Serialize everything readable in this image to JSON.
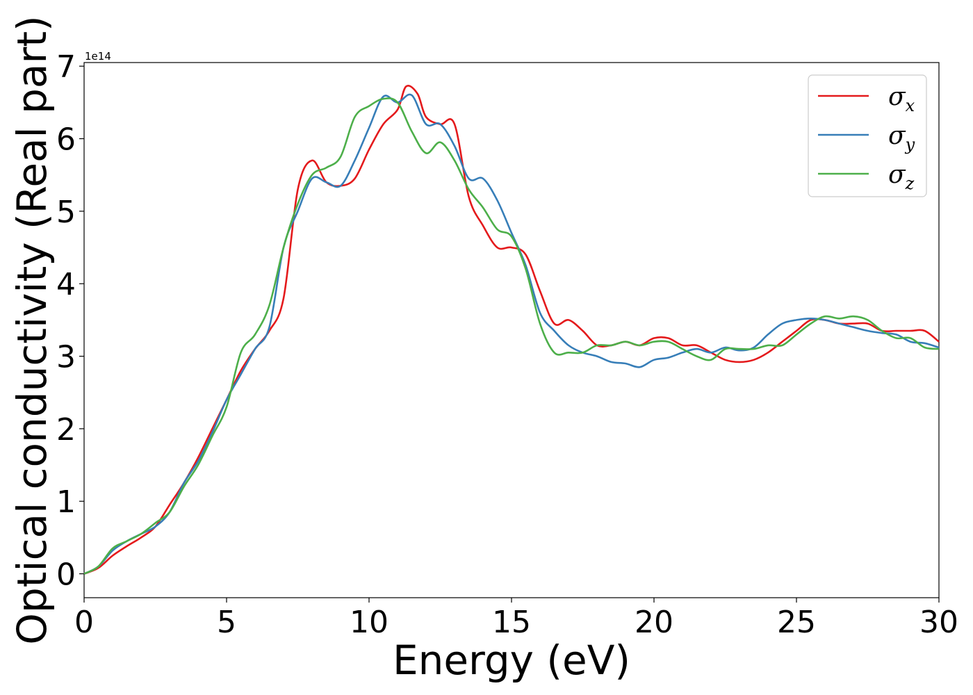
{
  "chart_data": {
    "type": "line",
    "xlabel": "Energy (eV)",
    "ylabel": "Optical conductivity (Real part)",
    "y_offset_label": "1e14",
    "xlim": [
      0,
      30
    ],
    "ylim": [
      -0.33,
      7.05
    ],
    "xticks": [
      0,
      5,
      10,
      15,
      20,
      25,
      30
    ],
    "yticks": [
      0,
      1,
      2,
      3,
      4,
      5,
      6,
      7
    ],
    "grid": false,
    "legend_position": "top-right",
    "series": [
      {
        "name": "σx",
        "symbol": "σ",
        "subscript": "x",
        "color": "#e41a1c",
        "x": [
          0,
          0.5,
          1,
          1.5,
          2,
          2.5,
          3,
          3.5,
          4,
          4.5,
          5,
          5.5,
          6,
          6.5,
          7,
          7.5,
          8,
          8.5,
          9,
          9.5,
          10,
          10.5,
          11,
          11.3,
          11.7,
          12,
          12.5,
          13,
          13.5,
          14,
          14.5,
          15,
          15.5,
          16,
          16.5,
          17,
          17.5,
          18,
          18.5,
          19,
          19.5,
          20,
          20.5,
          21,
          21.5,
          22,
          22.5,
          23,
          23.5,
          24,
          24.5,
          25,
          25.5,
          26,
          26.5,
          27,
          27.5,
          28,
          28.5,
          29,
          29.5,
          30
        ],
        "y": [
          0,
          0.08,
          0.25,
          0.38,
          0.5,
          0.65,
          0.95,
          1.25,
          1.6,
          2.0,
          2.4,
          2.8,
          3.1,
          3.35,
          3.8,
          5.3,
          5.7,
          5.4,
          5.35,
          5.45,
          5.85,
          6.2,
          6.4,
          6.72,
          6.62,
          6.3,
          6.2,
          6.2,
          5.2,
          4.8,
          4.5,
          4.5,
          4.4,
          3.9,
          3.45,
          3.5,
          3.35,
          3.15,
          3.15,
          3.2,
          3.15,
          3.25,
          3.25,
          3.15,
          3.15,
          3.05,
          2.95,
          2.92,
          2.95,
          3.05,
          3.2,
          3.35,
          3.5,
          3.5,
          3.45,
          3.45,
          3.45,
          3.35,
          3.35,
          3.35,
          3.35,
          3.2
        ]
      },
      {
        "name": "σy",
        "symbol": "σ",
        "subscript": "y",
        "color": "#377eb8",
        "x": [
          0,
          0.5,
          1,
          1.5,
          2,
          2.5,
          3,
          3.5,
          4,
          4.5,
          5,
          5.5,
          6,
          6.5,
          7,
          7.5,
          8,
          8.5,
          9,
          9.5,
          10,
          10.5,
          11,
          11.5,
          12,
          12.5,
          13,
          13.5,
          14,
          14.5,
          15,
          15.5,
          16,
          16.5,
          17,
          17.5,
          18,
          18.5,
          19,
          19.5,
          20,
          20.5,
          21,
          21.5,
          22,
          22.5,
          23,
          23.5,
          24,
          24.5,
          25,
          25.5,
          26,
          26.5,
          27,
          27.5,
          28,
          28.5,
          29,
          29.5,
          30
        ],
        "y": [
          0,
          0.1,
          0.32,
          0.45,
          0.55,
          0.65,
          0.85,
          1.25,
          1.55,
          1.95,
          2.4,
          2.75,
          3.1,
          3.4,
          4.5,
          5.0,
          5.45,
          5.4,
          5.35,
          5.7,
          6.15,
          6.58,
          6.5,
          6.6,
          6.2,
          6.2,
          5.9,
          5.45,
          5.45,
          5.15,
          4.7,
          4.25,
          3.6,
          3.35,
          3.15,
          3.05,
          3.0,
          2.92,
          2.9,
          2.85,
          2.95,
          2.98,
          3.05,
          3.1,
          3.05,
          3.12,
          3.08,
          3.12,
          3.3,
          3.45,
          3.5,
          3.52,
          3.5,
          3.45,
          3.4,
          3.35,
          3.32,
          3.3,
          3.2,
          3.18,
          3.12
        ]
      },
      {
        "name": "σz",
        "symbol": "σ",
        "subscript": "z",
        "color": "#4daf4a",
        "x": [
          0,
          0.5,
          1,
          1.5,
          2,
          2.5,
          3,
          3.5,
          4,
          4.5,
          5,
          5.5,
          6,
          6.5,
          7,
          7.5,
          8,
          8.5,
          9,
          9.5,
          10,
          10.5,
          11,
          11.5,
          12,
          12.5,
          13,
          13.5,
          14,
          14.5,
          15,
          15.5,
          16,
          16.5,
          17,
          17.5,
          18,
          18.5,
          19,
          19.5,
          20,
          20.5,
          21,
          21.5,
          22,
          22.5,
          23,
          23.5,
          24,
          24.5,
          25,
          25.5,
          26,
          26.5,
          27,
          27.5,
          28,
          28.5,
          29,
          29.5,
          30
        ],
        "y": [
          0,
          0.1,
          0.35,
          0.45,
          0.55,
          0.7,
          0.85,
          1.2,
          1.5,
          1.9,
          2.3,
          3.05,
          3.3,
          3.7,
          4.5,
          5.1,
          5.5,
          5.6,
          5.75,
          6.3,
          6.45,
          6.55,
          6.5,
          6.1,
          5.8,
          5.95,
          5.7,
          5.3,
          5.05,
          4.75,
          4.65,
          4.2,
          3.45,
          3.05,
          3.05,
          3.05,
          3.15,
          3.15,
          3.2,
          3.15,
          3.2,
          3.2,
          3.1,
          3.0,
          2.95,
          3.1,
          3.1,
          3.1,
          3.15,
          3.15,
          3.3,
          3.45,
          3.55,
          3.52,
          3.55,
          3.5,
          3.35,
          3.25,
          3.25,
          3.12,
          3.1
        ]
      }
    ]
  }
}
